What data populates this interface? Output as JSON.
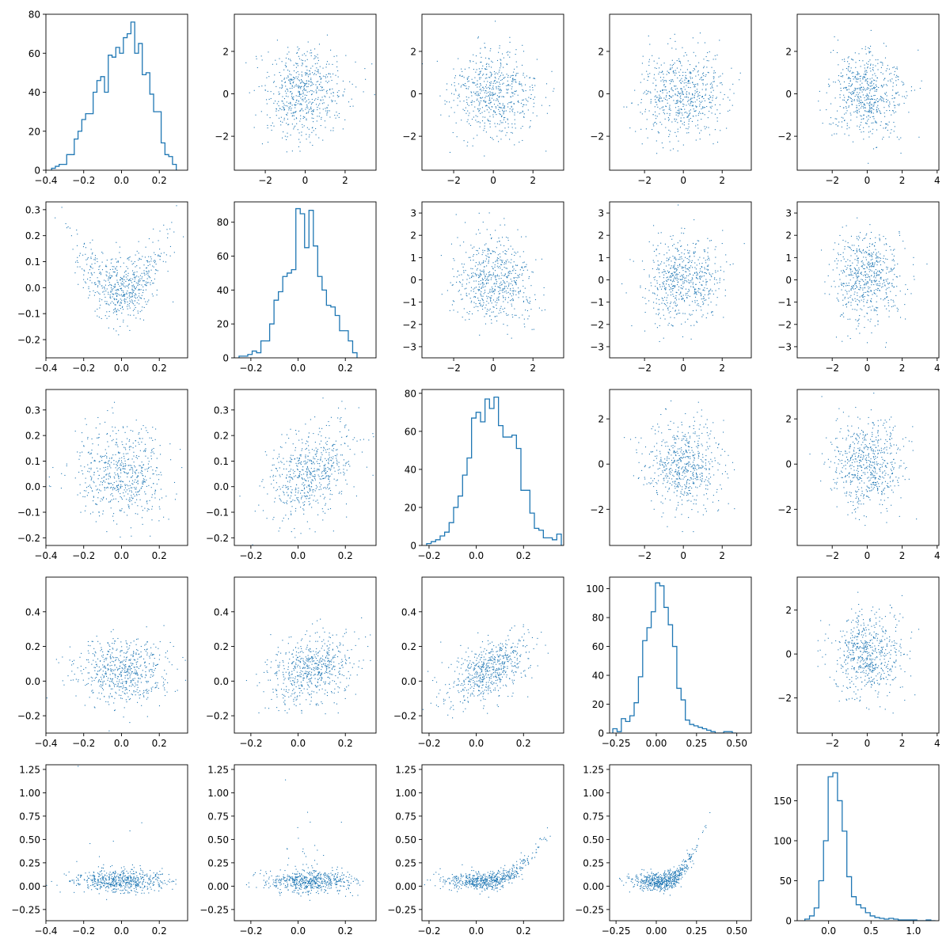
{
  "figure": {
    "grid": "5x5 corner plot",
    "series_color": "#1f77b4"
  },
  "chart_data": [
    {
      "panel": "r1c1",
      "type": "histogram",
      "xticks": [
        "−0.4",
        "−0.2",
        "0.0",
        "0.2"
      ],
      "yticks": [
        "0",
        "20",
        "40",
        "60",
        "80"
      ],
      "xlim": [
        -0.4,
        0.35
      ],
      "ylim": [
        0,
        80
      ],
      "bin_edges_start": -0.37,
      "bin_width": 0.02,
      "counts": [
        1,
        2,
        3,
        3,
        8,
        8,
        16,
        20,
        26,
        29,
        29,
        40,
        46,
        48,
        40,
        59,
        58,
        63,
        60,
        68,
        70,
        76,
        60,
        65,
        49,
        50,
        39,
        30,
        30,
        14,
        8,
        7,
        3
      ]
    },
    {
      "panel": "r1c2",
      "type": "scatter",
      "n_points": 600,
      "dist": "gaussian",
      "mean": [
        0,
        0
      ],
      "sd": [
        1.05,
        1.05
      ],
      "xticks": [
        "−2",
        "0",
        "2"
      ],
      "yticks": [
        "−2",
        "0",
        "2"
      ],
      "xlim": [
        -3.55,
        3.55
      ],
      "ylim": [
        -3.6,
        3.75
      ]
    },
    {
      "panel": "r1c3",
      "type": "scatter",
      "n_points": 600,
      "dist": "gaussian",
      "mean": [
        0,
        0
      ],
      "sd": [
        1.05,
        1.05
      ],
      "xticks": [
        "−2",
        "0",
        "2"
      ],
      "yticks": [
        "−2",
        "0",
        "2"
      ],
      "xlim": [
        -3.6,
        3.55
      ],
      "ylim": [
        -3.6,
        3.75
      ]
    },
    {
      "panel": "r1c4",
      "type": "scatter",
      "n_points": 600,
      "dist": "gaussian",
      "mean": [
        0,
        0
      ],
      "sd": [
        1.05,
        1.05
      ],
      "xticks": [
        "−2",
        "0",
        "2"
      ],
      "yticks": [
        "−2",
        "0",
        "2"
      ],
      "xlim": [
        -3.8,
        3.5
      ],
      "ylim": [
        -3.6,
        3.75
      ]
    },
    {
      "panel": "r1c5",
      "type": "scatter",
      "n_points": 600,
      "dist": "gaussian",
      "mean": [
        0,
        0
      ],
      "sd": [
        1.05,
        1.05
      ],
      "xticks": [
        "−2",
        "0",
        "2",
        "4"
      ],
      "yticks": [
        "−2",
        "0",
        "2"
      ],
      "xlim": [
        -4.0,
        4.1
      ],
      "ylim": [
        -3.6,
        3.75
      ]
    },
    {
      "panel": "r2c1",
      "type": "scatter",
      "n_points": 600,
      "dist": "v-shape",
      "mean": [
        0,
        0.02
      ],
      "sd": [
        0.12,
        0.08
      ],
      "curv": 2.5,
      "xticks": [
        "−0.4",
        "−0.2",
        "0.0",
        "0.2"
      ],
      "yticks": [
        "−0.2",
        "−0.1",
        "0.0",
        "0.1",
        "0.2",
        "0.3"
      ],
      "xlim": [
        -0.4,
        0.35
      ],
      "ylim": [
        -0.27,
        0.33
      ]
    },
    {
      "panel": "r2c2",
      "type": "histogram",
      "xticks": [
        "−0.2",
        "0.0",
        "0.2"
      ],
      "yticks": [
        "0",
        "20",
        "40",
        "60",
        "80"
      ],
      "xlim": [
        -0.27,
        0.33
      ],
      "ylim": [
        0,
        92
      ],
      "bin_edges_start": -0.25,
      "bin_width": 0.0185,
      "counts": [
        1,
        1,
        2,
        4,
        3,
        10,
        10,
        20,
        34,
        39,
        48,
        50,
        52,
        88,
        85,
        65,
        87,
        66,
        48,
        40,
        31,
        30,
        25,
        16,
        16,
        10,
        3
      ]
    },
    {
      "panel": "r2c3",
      "type": "scatter",
      "n_points": 600,
      "dist": "gaussian",
      "mean": [
        0,
        0
      ],
      "sd": [
        1.0,
        1.0
      ],
      "xticks": [
        "−2",
        "0",
        "2"
      ],
      "yticks": [
        "−3",
        "−2",
        "−1",
        "0",
        "1",
        "2",
        "3"
      ],
      "xlim": [
        -3.6,
        3.55
      ],
      "ylim": [
        -3.5,
        3.5
      ]
    },
    {
      "panel": "r2c4",
      "type": "scatter",
      "n_points": 600,
      "dist": "gaussian",
      "mean": [
        0,
        0
      ],
      "sd": [
        1.0,
        1.0
      ],
      "xticks": [
        "−2",
        "0",
        "2"
      ],
      "yticks": [
        "−3",
        "−2",
        "−1",
        "0",
        "1",
        "2",
        "3"
      ],
      "xlim": [
        -3.8,
        3.5
      ],
      "ylim": [
        -3.5,
        3.5
      ]
    },
    {
      "panel": "r2c5",
      "type": "scatter",
      "n_points": 600,
      "dist": "gaussian",
      "mean": [
        0,
        0
      ],
      "sd": [
        1.0,
        1.0
      ],
      "xticks": [
        "−2",
        "0",
        "2",
        "4"
      ],
      "yticks": [
        "−3",
        "−2",
        "−1",
        "0",
        "1",
        "2",
        "3"
      ],
      "xlim": [
        -4.0,
        4.1
      ],
      "ylim": [
        -3.5,
        3.5
      ]
    },
    {
      "panel": "r3c1",
      "type": "scatter",
      "n_points": 600,
      "dist": "gaussian",
      "mean": [
        0,
        0.05
      ],
      "sd": [
        0.12,
        0.09
      ],
      "xticks": [
        "−0.4",
        "−0.2",
        "0.0",
        "0.2"
      ],
      "yticks": [
        "−0.2",
        "−0.1",
        "0.0",
        "0.1",
        "0.2",
        "0.3"
      ],
      "xlim": [
        -0.4,
        0.35
      ],
      "ylim": [
        -0.23,
        0.38
      ]
    },
    {
      "panel": "r3c2",
      "type": "scatter",
      "n_points": 600,
      "dist": "correlated",
      "mean": [
        0.05,
        0.05
      ],
      "sd": [
        0.09,
        0.09
      ],
      "rho": 0.35,
      "xticks": [
        "−0.2",
        "0.0",
        "0.2"
      ],
      "yticks": [
        "−0.2",
        "−0.1",
        "0.0",
        "0.1",
        "0.2",
        "0.3"
      ],
      "xlim": [
        -0.27,
        0.33
      ],
      "ylim": [
        -0.23,
        0.38
      ]
    },
    {
      "panel": "r3c3",
      "type": "histogram",
      "xticks": [
        "−0.2",
        "0.0",
        "0.2"
      ],
      "yticks": [
        "0",
        "20",
        "40",
        "60",
        "80"
      ],
      "xlim": [
        -0.23,
        0.37
      ],
      "ylim": [
        0,
        82
      ],
      "bin_edges_start": -0.21,
      "bin_width": 0.019,
      "counts": [
        1,
        2,
        3,
        5,
        7,
        12,
        20,
        26,
        37,
        46,
        67,
        70,
        65,
        77,
        72,
        78,
        63,
        57,
        57,
        58,
        51,
        29,
        29,
        17,
        9,
        8,
        4,
        4,
        3,
        6
      ]
    },
    {
      "panel": "r3c4",
      "type": "scatter",
      "n_points": 600,
      "dist": "gaussian",
      "mean": [
        0,
        0
      ],
      "sd": [
        1.0,
        1.0
      ],
      "xticks": [
        "−2",
        "0",
        "2"
      ],
      "yticks": [
        "−2",
        "0",
        "2"
      ],
      "xlim": [
        -3.8,
        3.5
      ],
      "ylim": [
        -3.6,
        3.3
      ]
    },
    {
      "panel": "r3c5",
      "type": "scatter",
      "n_points": 600,
      "dist": "gaussian",
      "mean": [
        0,
        0
      ],
      "sd": [
        1.0,
        1.0
      ],
      "xticks": [
        "−2",
        "0",
        "2",
        "4"
      ],
      "yticks": [
        "−2",
        "0",
        "2"
      ],
      "xlim": [
        -4.0,
        4.1
      ],
      "ylim": [
        -3.6,
        3.3
      ]
    },
    {
      "panel": "r4c1",
      "type": "scatter",
      "n_points": 600,
      "dist": "gaussian",
      "mean": [
        0,
        0.06
      ],
      "sd": [
        0.12,
        0.1
      ],
      "xticks": [
        "−0.4",
        "−0.2",
        "0.0",
        "0.2"
      ],
      "yticks": [
        "−0.2",
        "0.0",
        "0.2",
        "0.4"
      ],
      "xlim": [
        -0.4,
        0.35
      ],
      "ylim": [
        -0.3,
        0.6
      ]
    },
    {
      "panel": "r4c2",
      "type": "scatter",
      "n_points": 600,
      "dist": "correlated",
      "mean": [
        0.05,
        0.06
      ],
      "sd": [
        0.09,
        0.1
      ],
      "rho": 0.3,
      "xticks": [
        "−0.2",
        "0.0",
        "0.2"
      ],
      "yticks": [
        "−0.2",
        "0.0",
        "0.2",
        "0.4"
      ],
      "xlim": [
        -0.27,
        0.33
      ],
      "ylim": [
        -0.3,
        0.6
      ]
    },
    {
      "panel": "r4c3",
      "type": "scatter",
      "n_points": 600,
      "dist": "correlated",
      "mean": [
        0.05,
        0.06
      ],
      "sd": [
        0.09,
        0.1
      ],
      "rho": 0.55,
      "xticks": [
        "−0.2",
        "0.0",
        "0.2"
      ],
      "yticks": [
        "−0.2",
        "0.0",
        "0.2",
        "0.4"
      ],
      "xlim": [
        -0.23,
        0.37
      ],
      "ylim": [
        -0.3,
        0.6
      ]
    },
    {
      "panel": "r4c4",
      "type": "histogram",
      "xticks": [
        "−0.25",
        "0.00",
        "0.25",
        "0.50"
      ],
      "yticks": [
        "0",
        "20",
        "40",
        "60",
        "80",
        "100"
      ],
      "xlim": [
        -0.29,
        0.59
      ],
      "ylim": [
        0,
        108
      ],
      "bin_edges_start": -0.27,
      "bin_width": 0.0265,
      "counts": [
        3,
        1,
        10,
        8,
        12,
        21,
        39,
        64,
        73,
        84,
        104,
        102,
        87,
        75,
        60,
        31,
        23,
        9,
        6,
        5,
        4,
        3,
        2,
        1,
        0,
        0,
        1,
        1,
        0
      ]
    },
    {
      "panel": "r4c5",
      "type": "scatter",
      "n_points": 600,
      "dist": "gaussian",
      "mean": [
        0,
        0
      ],
      "sd": [
        1.0,
        1.0
      ],
      "xticks": [
        "−2",
        "0",
        "2",
        "4"
      ],
      "yticks": [
        "−2",
        "0",
        "2"
      ],
      "xlim": [
        -4.0,
        4.1
      ],
      "ylim": [
        -3.6,
        3.5
      ]
    },
    {
      "panel": "r5c1",
      "type": "scatter",
      "n_points": 600,
      "dist": "skew",
      "mean": [
        0,
        0.05
      ],
      "sd": [
        0.12,
        0.08
      ],
      "xticks": [
        "−0.4",
        "−0.2",
        "0.0",
        "0.2"
      ],
      "yticks": [
        "−0.25",
        "0.00",
        "0.25",
        "0.50",
        "0.75",
        "1.00",
        "1.25"
      ],
      "xlim": [
        -0.4,
        0.35
      ],
      "ylim": [
        -0.37,
        1.3
      ]
    },
    {
      "panel": "r5c2",
      "type": "scatter",
      "n_points": 600,
      "dist": "skew",
      "mean": [
        0.05,
        0.05
      ],
      "sd": [
        0.09,
        0.08
      ],
      "xticks": [
        "−0.2",
        "0.0",
        "0.2"
      ],
      "yticks": [
        "−0.25",
        "0.00",
        "0.25",
        "0.50",
        "0.75",
        "1.00",
        "1.25"
      ],
      "xlim": [
        -0.27,
        0.33
      ],
      "ylim": [
        -0.37,
        1.3
      ]
    },
    {
      "panel": "r5c3",
      "type": "scatter",
      "n_points": 600,
      "dist": "curve",
      "mean": [
        0.05,
        0.05
      ],
      "sd": [
        0.09,
        0.08
      ],
      "curv": 2.0,
      "xticks": [
        "−0.2",
        "0.0",
        "0.2"
      ],
      "yticks": [
        "−0.25",
        "0.00",
        "0.25",
        "0.50",
        "0.75",
        "1.00",
        "1.25"
      ],
      "xlim": [
        -0.23,
        0.37
      ],
      "ylim": [
        -0.37,
        1.3
      ]
    },
    {
      "panel": "r5c4",
      "type": "scatter",
      "n_points": 600,
      "dist": "curve",
      "mean": [
        0.05,
        0.05
      ],
      "sd": [
        0.1,
        0.08
      ],
      "curv": 2.2,
      "xticks": [
        "−0.25",
        "0.00",
        "0.25",
        "0.50"
      ],
      "yticks": [
        "−0.25",
        "0.00",
        "0.25",
        "0.50",
        "0.75",
        "1.00",
        "1.25"
      ],
      "xlim": [
        -0.29,
        0.59
      ],
      "ylim": [
        -0.37,
        1.3
      ]
    },
    {
      "panel": "r5c5",
      "type": "histogram",
      "xticks": [
        "0.0",
        "0.5",
        "1.0"
      ],
      "yticks": [
        "0",
        "50",
        "100",
        "150"
      ],
      "xlim": [
        -0.37,
        1.3
      ],
      "ylim": [
        0,
        195
      ],
      "bin_edges_start": -0.28,
      "bin_width": 0.055,
      "counts": [
        2,
        6,
        16,
        50,
        100,
        180,
        185,
        150,
        112,
        55,
        30,
        20,
        16,
        10,
        6,
        4,
        3,
        2,
        3,
        2,
        1,
        1,
        1,
        1,
        0,
        0,
        1,
        0
      ]
    }
  ]
}
